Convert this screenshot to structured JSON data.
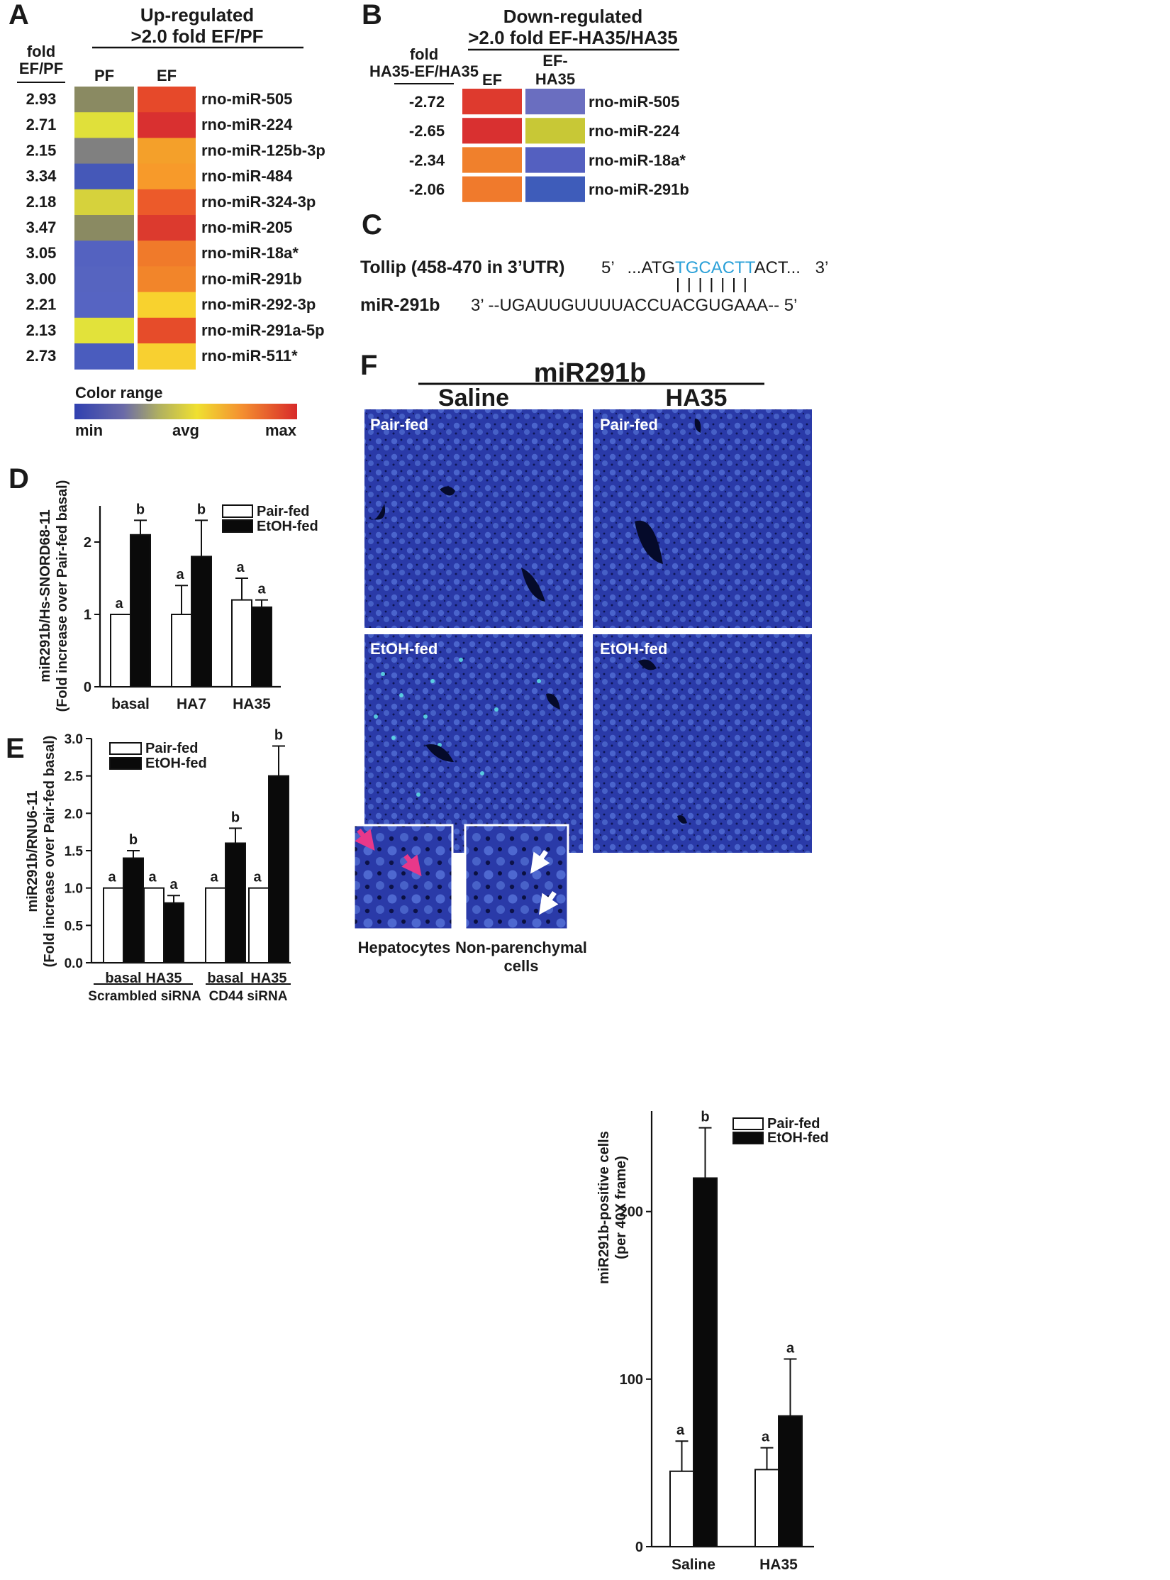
{
  "panels": {
    "A": {
      "letter": "A",
      "title_line1": "Up-regulated",
      "title_line2": ">2.0 fold EF/PF",
      "fold_header_line1": "fold",
      "fold_header_line2": "EF/PF",
      "col_pf": "PF",
      "col_ef": "EF",
      "rows": [
        {
          "fold": "2.93",
          "mirna": "rno-miR-505",
          "pf": "#8a8a62",
          "ef": "#e6492a"
        },
        {
          "fold": "2.71",
          "mirna": "rno-miR-224",
          "pf": "#e0e03a",
          "ef": "#d93030"
        },
        {
          "fold": "2.15",
          "mirna": "rno-miR-125b-3p",
          "pf": "#808080",
          "ef": "#f4a02a"
        },
        {
          "fold": "3.34",
          "mirna": "rno-miR-484",
          "pf": "#4558b8",
          "ef": "#f79a2a"
        },
        {
          "fold": "2.18",
          "mirna": "rno-miR-324-3p",
          "pf": "#d6d23c",
          "ef": "#ec5a2a"
        },
        {
          "fold": "3.47",
          "mirna": "rno-miR-205",
          "pf": "#8a8a62",
          "ef": "#dc3a2e"
        },
        {
          "fold": "3.05",
          "mirna": "rno-miR-18a*",
          "pf": "#5462c0",
          "ef": "#f07a2a"
        },
        {
          "fold": "3.00",
          "mirna": "rno-miR-291b",
          "pf": "#5664c0",
          "ef": "#f2852a"
        },
        {
          "fold": "2.21",
          "mirna": "rno-miR-292-3p",
          "pf": "#5664c2",
          "ef": "#f8d22e"
        },
        {
          "fold": "2.13",
          "mirna": "rno-miR-291a-5p",
          "pf": "#e2e23a",
          "ef": "#e64c2a"
        },
        {
          "fold": "2.73",
          "mirna": "rno-miR-511*",
          "pf": "#4a5cbe",
          "ef": "#f8d030"
        }
      ],
      "color_range_label": "Color range",
      "min_label": "min",
      "avg_label": "avg",
      "max_label": "max"
    },
    "B": {
      "letter": "B",
      "title_line1": "Down-regulated",
      "title_line2": ">2.0 fold EF-HA35/HA35",
      "fold_header_line1": "fold",
      "fold_header_line2": "HA35-EF/HA35",
      "col_ef": "EF",
      "col_efha_line1": "EF-",
      "col_efha_line2": "HA35",
      "rows": [
        {
          "fold": "-2.72",
          "mirna": "rno-miR-505",
          "ef": "#de3a2e",
          "efha": "#6a6ec0"
        },
        {
          "fold": "-2.65",
          "mirna": "rno-miR-224",
          "ef": "#d93030",
          "efha": "#c8c836"
        },
        {
          "fold": "-2.34",
          "mirna": "rno-miR-18a*",
          "ef": "#f0802c",
          "efha": "#5460c0"
        },
        {
          "fold": "-2.06",
          "mirna": "rno-miR-291b",
          "ef": "#f07a2c",
          "efha": "#3e5cba"
        }
      ]
    },
    "C": {
      "letter": "C",
      "gene_label": "Tollip (458-470 in 3’UTR)",
      "target_5": "5’",
      "target_pre": "...ATG",
      "target_seed": "TGCACTT",
      "target_post": "ACT...",
      "target_3": "3’",
      "seed_color": "#2aa0d8",
      "mirna_label": "miR-291b",
      "mirna_seq": "3’ --UGAUUGUUUUACCUACGUGAAA-- 5’"
    },
    "D": {
      "letter": "D",
      "ylabel_line1": "miR291b/Hs-SNORD68-11",
      "ylabel_line2": "(Fold increase over  Pair-fed basal)",
      "legend": [
        "Pair-fed",
        "EtOH-fed"
      ]
    },
    "E": {
      "letter": "E",
      "ylabel_line1": "miR291b/RNU6-11",
      "ylabel_line2": "(Fold increase over  Pair-fed basal)",
      "legend": [
        "Pair-fed",
        "EtOH-fed"
      ],
      "group_labels": [
        "Scrambled siRNA",
        "CD44 siRNA"
      ]
    },
    "F": {
      "letter": "F",
      "title": "miR291b",
      "col_saline": "Saline",
      "col_ha35": "HA35",
      "row_pairfed": "Pair-fed",
      "row_etohfed": "EtOH-fed",
      "inset_hepatocytes": "Hepatocytes",
      "inset_npc_line1": "Non-parenchymal",
      "inset_npc_line2": "cells",
      "arrow_hep_color": "#e8388a",
      "arrow_npc_color": "#ffffff",
      "ylabel_line1": "miR291b-positive cells",
      "ylabel_line2": "(per 40X frame)",
      "legend": [
        "Pair-fed",
        "EtOH-fed"
      ]
    }
  },
  "chart_data": [
    {
      "id": "D",
      "type": "bar",
      "categories": [
        "basal",
        "HA7",
        "HA35"
      ],
      "series": [
        {
          "name": "Pair-fed",
          "values": [
            1.0,
            1.0,
            1.2
          ],
          "errors": [
            0.0,
            0.4,
            0.3
          ],
          "letters": [
            "a",
            "a",
            "a"
          ]
        },
        {
          "name": "EtOH-fed",
          "values": [
            2.1,
            1.8,
            1.1
          ],
          "errors": [
            0.2,
            0.5,
            0.1
          ],
          "letters": [
            "b",
            "b",
            "a"
          ]
        }
      ],
      "ylim": [
        0,
        2.5
      ],
      "yticks": [
        "0",
        "1",
        "2"
      ],
      "legend": "top-right"
    },
    {
      "id": "E",
      "type": "bar",
      "categories": [
        "basal",
        "HA35",
        "basal",
        "HA35"
      ],
      "groups": [
        "Scrambled siRNA",
        "CD44 siRNA"
      ],
      "series": [
        {
          "name": "Pair-fed",
          "values": [
            1.0,
            1.0,
            1.0,
            1.0
          ],
          "errors": [
            0,
            0,
            0,
            0
          ],
          "letters": [
            "a",
            "a",
            "a",
            "a"
          ]
        },
        {
          "name": "EtOH-fed",
          "values": [
            1.4,
            0.8,
            1.6,
            2.5
          ],
          "errors": [
            0.1,
            0.1,
            0.2,
            0.4
          ],
          "letters": [
            "b",
            "a",
            "b",
            "b"
          ]
        }
      ],
      "ylim": [
        0,
        3.0
      ],
      "yticks": [
        "0.0",
        "0.5",
        "1.0",
        "1.5",
        "2.0",
        "2.5",
        "3.0"
      ],
      "legend": "top-left"
    },
    {
      "id": "F",
      "type": "bar",
      "categories": [
        "Saline",
        "HA35"
      ],
      "series": [
        {
          "name": "Pair-fed",
          "values": [
            45,
            46
          ],
          "errors": [
            18,
            13
          ],
          "letters": [
            "a",
            "a"
          ]
        },
        {
          "name": "EtOH-fed",
          "values": [
            220,
            78
          ],
          "errors": [
            30,
            34
          ],
          "letters": [
            "b",
            "a"
          ]
        }
      ],
      "ylim": [
        0,
        260
      ],
      "yticks": [
        "0",
        "100",
        "200"
      ],
      "legend": "top-right"
    }
  ]
}
